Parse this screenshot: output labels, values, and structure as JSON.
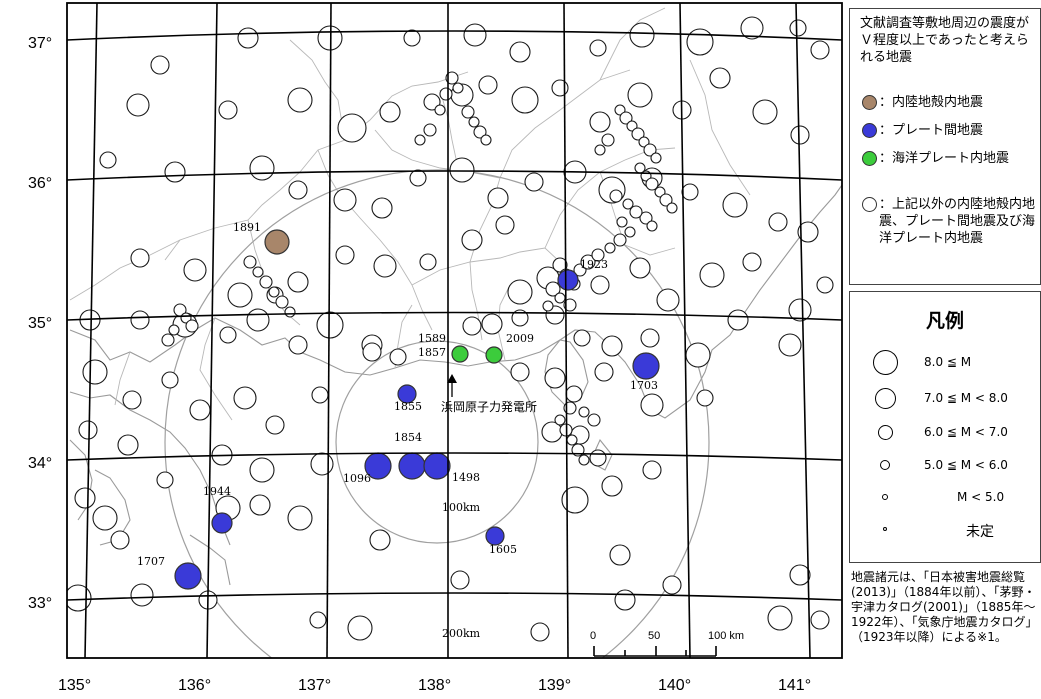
{
  "map": {
    "lat_labels": [
      "37°",
      "36°",
      "35°",
      "34°",
      "33°"
    ],
    "lon_labels": [
      "135°",
      "136°",
      "137°",
      "138°",
      "139°",
      "140°",
      "141°"
    ],
    "year_labels": [
      "1891",
      "1923",
      "1589",
      "1857",
      "2009",
      "1855",
      "1854",
      "1703",
      "1096",
      "1498",
      "1944",
      "1707",
      "1605"
    ],
    "plant_label": "浜岡原子力発電所",
    "ring_labels": [
      "100km",
      "200km"
    ],
    "scale": {
      "ticks": [
        "0",
        "50",
        "100 km"
      ]
    },
    "colors": {
      "inland": "#a8866a",
      "plate": "#3a3ad8",
      "oceanic": "#3ccc3c",
      "other": "#ffffff"
    }
  },
  "legend_type": {
    "heading": "文献調査等敷地周辺の震度がＶ程度以上であったと考えられる地震",
    "items": [
      {
        "label": "：内陸地殻内地震",
        "color": "#a8866a"
      },
      {
        "label": "：プレート間地震",
        "color": "#3a3ad8"
      },
      {
        "label": "：海洋プレート内地震",
        "color": "#3ccc3c"
      },
      {
        "label": "：上記以外の内陸地殻内地震、プレート間地震及び海洋プレート内地震",
        "color": "#ffffff"
      }
    ]
  },
  "legend_mag": {
    "title": "凡例",
    "rows": [
      "8.0 ≦ M",
      "7.0 ≦ M < 8.0",
      "6.0 ≦ M < 7.0",
      "5.0 ≦ M < 6.0",
      "M < 5.0",
      "未定"
    ]
  },
  "source_note": "地震諸元は、「日本被害地震総覧(2013)」（1884年以前）、「茅野・宇津カタログ(2001)」（1885年～1922年）、「気象庁地震カタログ」（1923年以降）による※1。"
}
